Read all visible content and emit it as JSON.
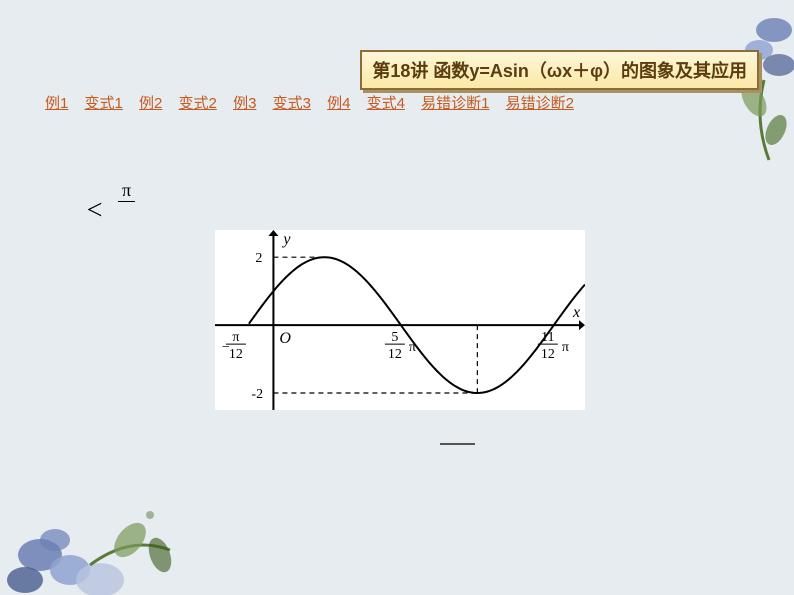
{
  "title": "第18讲 函数y=Asin（ωx＋φ）的图象及其应用",
  "nav": [
    {
      "label": "例1"
    },
    {
      "label": "变式1"
    },
    {
      "label": "例2"
    },
    {
      "label": "变式2"
    },
    {
      "label": "例3"
    },
    {
      "label": "变式3"
    },
    {
      "label": "例4"
    },
    {
      "label": "变式4"
    },
    {
      "label": "易错诊断1"
    },
    {
      "label": "易错诊断2"
    }
  ],
  "inequality": {
    "symbol": "<",
    "numerator": "π",
    "denominator": " "
  },
  "chart": {
    "type": "line",
    "background_color": "#ffffff",
    "axis_color": "#000000",
    "line_color": "#000000",
    "line_width": 2,
    "dash_color": "#000000",
    "y_label": "y",
    "x_label": "x",
    "origin_label": "O",
    "amplitude": 2,
    "y_ticks": [
      2,
      -2
    ],
    "x_tick_labels": [
      {
        "label_top": "π",
        "label_bottom": "12",
        "neg": true,
        "pos": -0.2618
      },
      {
        "label_top": "5",
        "label_bottom": "12",
        "suffix": "π",
        "neg": false,
        "pos": 1.309
      },
      {
        "label_top": "11",
        "label_bottom": "12",
        "suffix": "π",
        "neg": false,
        "pos": 2.8798
      }
    ],
    "x_range": [
      -0.6,
      3.2
    ],
    "y_range": [
      -2.5,
      2.8
    ],
    "sine": {
      "A": 2,
      "omega": 2,
      "phi": 0.5236,
      "samples": 120
    },
    "label_fontsize": 16,
    "tick_fontsize": 14
  },
  "decor": {
    "flower_colors": [
      "#6b7fb5",
      "#8fa3d1",
      "#4a5e8f",
      "#b8c4e0"
    ],
    "leaf_colors": [
      "#5a7a3a",
      "#7a9a5a",
      "#3a5a1a"
    ]
  }
}
